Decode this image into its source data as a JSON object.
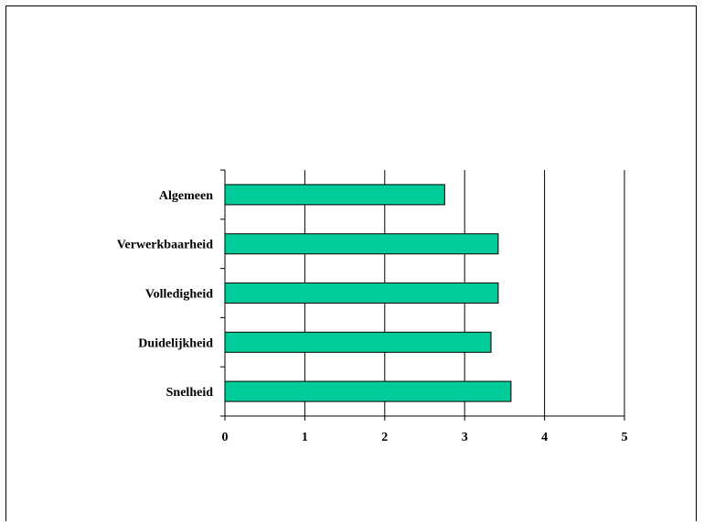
{
  "chart_data": {
    "type": "bar",
    "orientation": "horizontal",
    "categories": [
      "Algemeen",
      "Verwerkbaarheid",
      "Volledigheid",
      "Duidelijkheid",
      "Snelheid"
    ],
    "values": [
      2.75,
      3.42,
      3.42,
      3.33,
      3.58
    ],
    "xlim": [
      0,
      5
    ],
    "xticks": [
      "0",
      "1",
      "2",
      "3",
      "4",
      "5"
    ],
    "title": "",
    "xlabel": "",
    "ylabel": "",
    "grid": "vertical",
    "legend": "none",
    "bar_color": "#00CC99"
  }
}
